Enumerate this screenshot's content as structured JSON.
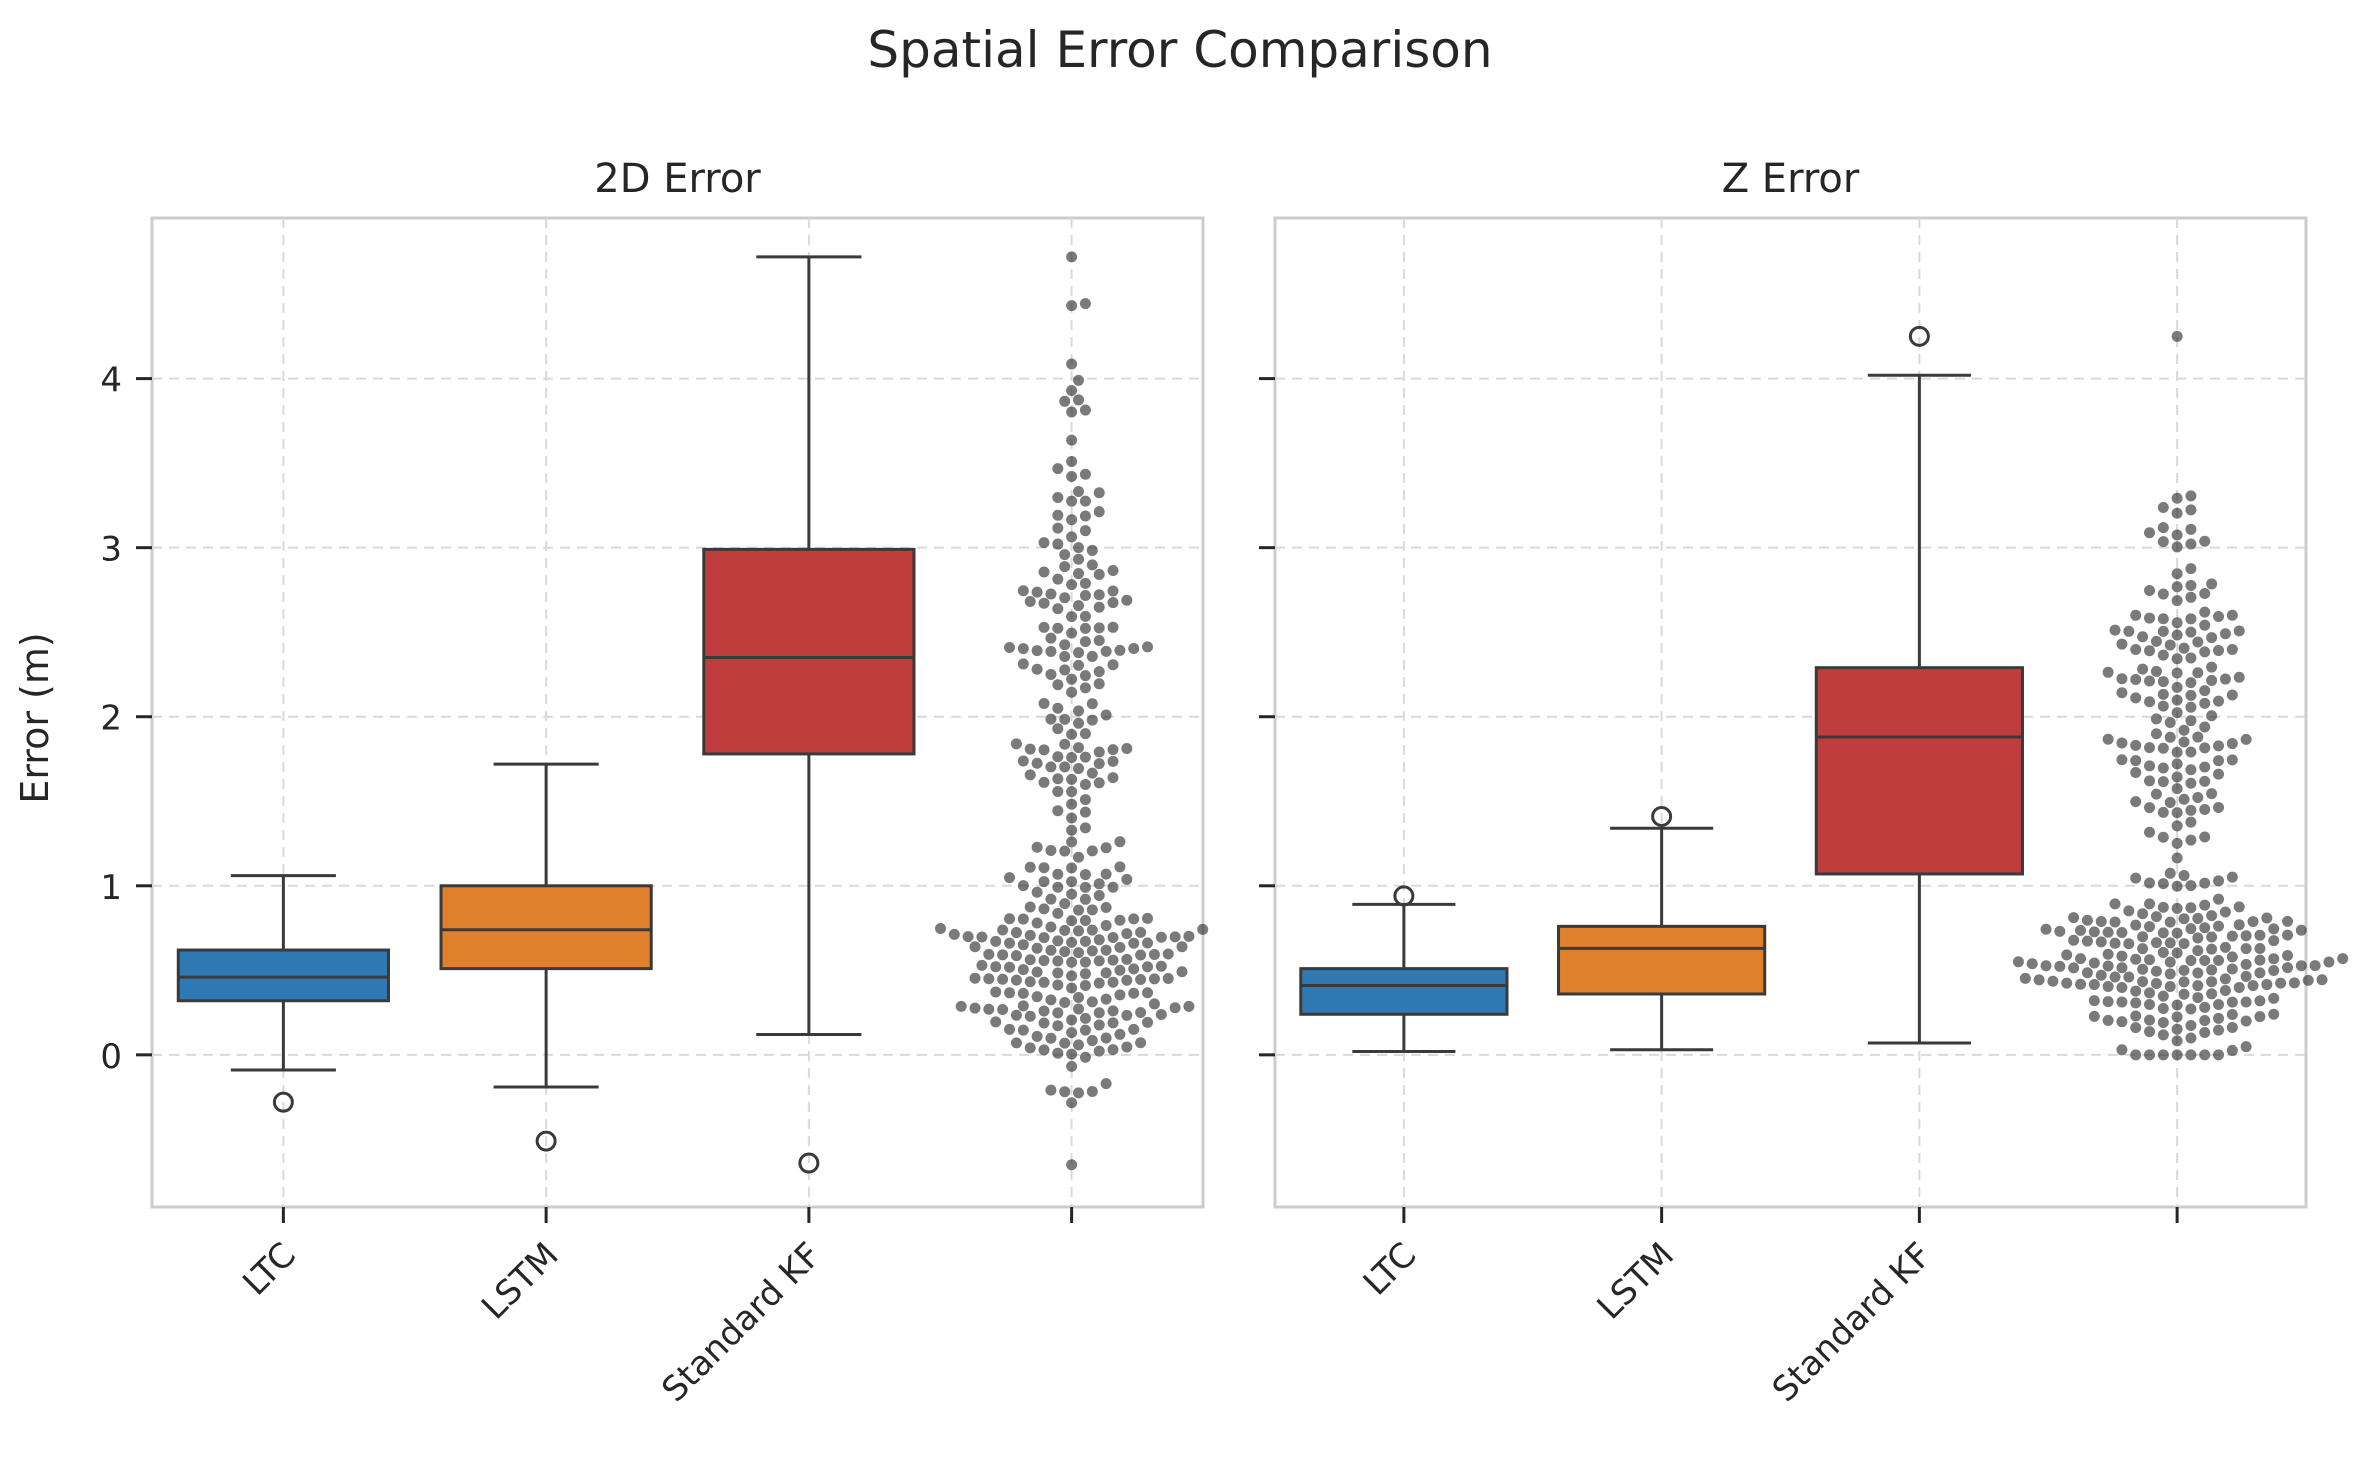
{
  "title": "Spatial Error Comparison",
  "y_axis_label": "Error (m)",
  "colors": {
    "LTC": "#2f7ab5",
    "LSTM": "#e1802c",
    "Standard KF": "#c03d3e",
    "swarm": "#222222",
    "frame": "#cccccc",
    "grid": "#d9d9d9",
    "line": "#3a3a3a"
  },
  "chart_data": [
    {
      "type": "box",
      "title": "2D Error",
      "ylabel": "Error (m)",
      "ylim": [
        -0.9,
        4.95
      ],
      "yticks": [
        0,
        1,
        2,
        3,
        4
      ],
      "grid": true,
      "categories": [
        "LTC",
        "LSTM",
        "Standard KF",
        ""
      ],
      "boxes": [
        {
          "name": "LTC",
          "whislo": -0.09,
          "q1": 0.32,
          "med": 0.46,
          "q3": 0.62,
          "whishi": 1.06,
          "fliers": [
            -0.28
          ]
        },
        {
          "name": "LSTM",
          "whislo": -0.19,
          "q1": 0.51,
          "med": 0.74,
          "q3": 1.0,
          "whishi": 1.72,
          "fliers": [
            -0.51
          ]
        },
        {
          "name": "Standard KF",
          "whislo": 0.12,
          "q1": 1.78,
          "med": 2.35,
          "q3": 2.99,
          "whishi": 4.72,
          "fliers": [
            -0.64
          ]
        }
      ],
      "swarm": {
        "category": 3,
        "n": 330,
        "min": -0.65,
        "max": 4.72
      }
    },
    {
      "type": "box",
      "title": "Z Error",
      "ylabel": "",
      "ylim": [
        -0.9,
        4.95
      ],
      "yticks": [
        0,
        1,
        2,
        3,
        4
      ],
      "grid": true,
      "categories": [
        "LTC",
        "LSTM",
        "Standard KF",
        ""
      ],
      "boxes": [
        {
          "name": "LTC",
          "whislo": 0.02,
          "q1": 0.24,
          "med": 0.41,
          "q3": 0.51,
          "whishi": 0.89,
          "fliers": [
            0.94
          ]
        },
        {
          "name": "LSTM",
          "whislo": 0.03,
          "q1": 0.36,
          "med": 0.63,
          "q3": 0.76,
          "whishi": 1.34,
          "fliers": [
            1.41
          ]
        },
        {
          "name": "Standard KF",
          "whislo": 0.07,
          "q1": 1.07,
          "med": 1.88,
          "q3": 2.29,
          "whishi": 4.02,
          "fliers": [
            4.25
          ]
        }
      ],
      "swarm": {
        "category": 3,
        "n": 330,
        "min": 0.0,
        "max": 4.25
      }
    }
  ]
}
